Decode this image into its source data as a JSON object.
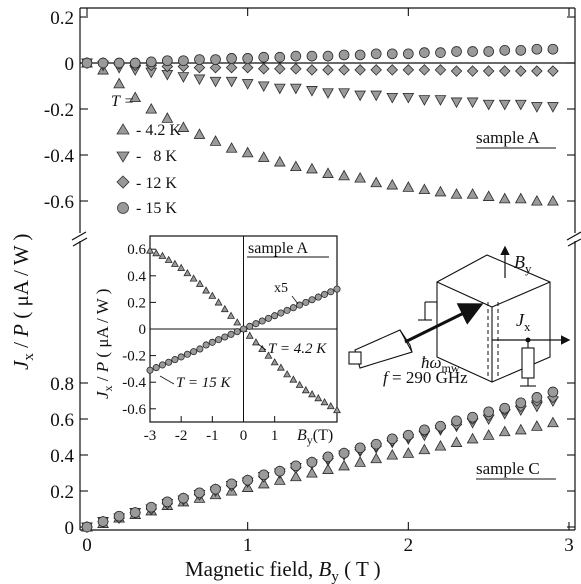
{
  "chart_data": [
    {
      "panel": "upper",
      "type": "scatter",
      "label": "sample A",
      "xlim": [
        0,
        3
      ],
      "ylim": [
        -0.7,
        0.2
      ],
      "y_ticks": [
        "0.2",
        "0",
        "-0.2",
        "-0.4",
        "-0.6"
      ],
      "y_tick_values": [
        0.2,
        0,
        -0.2,
        -0.4,
        -0.6
      ],
      "legend_title": "T =",
      "legend_placement": "left",
      "series": [
        {
          "name": "- 4.2 K",
          "marker": "triangle-up",
          "x": [
            0,
            0.1,
            0.2,
            0.3,
            0.4,
            0.5,
            0.6,
            0.7,
            0.8,
            0.9,
            1.0,
            1.1,
            1.2,
            1.3,
            1.4,
            1.5,
            1.6,
            1.7,
            1.8,
            1.9,
            2.0,
            2.1,
            2.2,
            2.3,
            2.4,
            2.5,
            2.6,
            2.7,
            2.8,
            2.9
          ],
          "y": [
            0,
            -0.03,
            -0.09,
            -0.15,
            -0.2,
            -0.24,
            -0.28,
            -0.31,
            -0.34,
            -0.37,
            -0.39,
            -0.41,
            -0.43,
            -0.45,
            -0.46,
            -0.48,
            -0.49,
            -0.5,
            -0.52,
            -0.53,
            -0.54,
            -0.55,
            -0.56,
            -0.57,
            -0.57,
            -0.58,
            -0.59,
            -0.59,
            -0.6,
            -0.6
          ]
        },
        {
          "name": "-   8 K",
          "marker": "triangle-down",
          "x": [
            0,
            0.1,
            0.2,
            0.3,
            0.4,
            0.5,
            0.6,
            0.7,
            0.8,
            0.9,
            1.0,
            1.1,
            1.2,
            1.3,
            1.4,
            1.5,
            1.6,
            1.7,
            1.8,
            1.9,
            2.0,
            2.1,
            2.2,
            2.3,
            2.4,
            2.5,
            2.6,
            2.7,
            2.8,
            2.9
          ],
          "y": [
            0,
            -0.01,
            -0.02,
            -0.03,
            -0.04,
            -0.05,
            -0.06,
            -0.07,
            -0.08,
            -0.08,
            -0.09,
            -0.1,
            -0.11,
            -0.11,
            -0.12,
            -0.13,
            -0.13,
            -0.14,
            -0.14,
            -0.15,
            -0.15,
            -0.16,
            -0.16,
            -0.17,
            -0.17,
            -0.18,
            -0.18,
            -0.18,
            -0.19,
            -0.19
          ]
        },
        {
          "name": "- 12 K",
          "marker": "diamond",
          "x": [
            0,
            0.1,
            0.2,
            0.3,
            0.4,
            0.5,
            0.6,
            0.7,
            0.8,
            0.9,
            1.0,
            1.1,
            1.2,
            1.3,
            1.4,
            1.5,
            1.6,
            1.7,
            1.8,
            1.9,
            2.0,
            2.1,
            2.2,
            2.3,
            2.4,
            2.5,
            2.6,
            2.7,
            2.8,
            2.9
          ],
          "y": [
            0,
            0,
            -0.005,
            -0.01,
            -0.01,
            -0.015,
            -0.015,
            -0.02,
            -0.02,
            -0.02,
            -0.02,
            -0.025,
            -0.025,
            -0.025,
            -0.03,
            -0.03,
            -0.03,
            -0.03,
            -0.03,
            -0.03,
            -0.03,
            -0.03,
            -0.03,
            -0.035,
            -0.035,
            -0.035,
            -0.035,
            -0.035,
            -0.035,
            -0.035
          ]
        },
        {
          "name": "- 15 K",
          "marker": "circle",
          "x": [
            0,
            0.1,
            0.2,
            0.3,
            0.4,
            0.5,
            0.6,
            0.7,
            0.8,
            0.9,
            1.0,
            1.1,
            1.2,
            1.3,
            1.4,
            1.5,
            1.6,
            1.7,
            1.8,
            1.9,
            2.0,
            2.1,
            2.2,
            2.3,
            2.4,
            2.5,
            2.6,
            2.7,
            2.8,
            2.9
          ],
          "y": [
            0,
            0,
            0,
            0,
            0.005,
            0.01,
            0.01,
            0.015,
            0.015,
            0.02,
            0.02,
            0.025,
            0.025,
            0.03,
            0.03,
            0.03,
            0.035,
            0.035,
            0.04,
            0.04,
            0.04,
            0.045,
            0.045,
            0.05,
            0.05,
            0.05,
            0.055,
            0.055,
            0.06,
            0.06
          ]
        }
      ]
    },
    {
      "panel": "lower",
      "type": "scatter",
      "label": "sample C",
      "xlim": [
        0,
        3
      ],
      "ylim": [
        0,
        0.9
      ],
      "y_ticks": [
        "0.8",
        "0.6",
        "0.4",
        "0.2",
        "0"
      ],
      "y_tick_values": [
        0.8,
        0.6,
        0.4,
        0.2,
        0
      ],
      "series": [
        {
          "marker": "triangle-up",
          "x": [
            0,
            0.1,
            0.2,
            0.3,
            0.4,
            0.5,
            0.6,
            0.7,
            0.8,
            0.9,
            1.0,
            1.1,
            1.2,
            1.3,
            1.4,
            1.5,
            1.6,
            1.7,
            1.8,
            1.9,
            2.0,
            2.1,
            2.2,
            2.3,
            2.4,
            2.5,
            2.6,
            2.7,
            2.8,
            2.9
          ],
          "y": [
            0,
            0.02,
            0.05,
            0.07,
            0.09,
            0.12,
            0.14,
            0.16,
            0.18,
            0.2,
            0.22,
            0.24,
            0.26,
            0.28,
            0.3,
            0.32,
            0.34,
            0.36,
            0.38,
            0.4,
            0.41,
            0.43,
            0.45,
            0.47,
            0.49,
            0.51,
            0.53,
            0.54,
            0.56,
            0.58
          ]
        },
        {
          "marker": "triangle-down",
          "x": [
            0,
            0.1,
            0.2,
            0.3,
            0.4,
            0.5,
            0.6,
            0.7,
            0.8,
            0.9,
            1.0,
            1.1,
            1.2,
            1.3,
            1.4,
            1.5,
            1.6,
            1.7,
            1.8,
            1.9,
            2.0,
            2.1,
            2.2,
            2.3,
            2.4,
            2.5,
            2.6,
            2.7,
            2.8,
            2.9
          ],
          "y": [
            0,
            0.03,
            0.05,
            0.08,
            0.1,
            0.13,
            0.15,
            0.18,
            0.2,
            0.23,
            0.25,
            0.28,
            0.3,
            0.33,
            0.35,
            0.37,
            0.4,
            0.42,
            0.44,
            0.47,
            0.49,
            0.51,
            0.54,
            0.56,
            0.58,
            0.6,
            0.63,
            0.65,
            0.67,
            0.7
          ]
        },
        {
          "marker": "diamond",
          "x": [
            0,
            0.1,
            0.2,
            0.3,
            0.4,
            0.5,
            0.6,
            0.7,
            0.8,
            0.9,
            1.0,
            1.1,
            1.2,
            1.3,
            1.4,
            1.5,
            1.6,
            1.7,
            1.8,
            1.9,
            2.0,
            2.1,
            2.2,
            2.3,
            2.4,
            2.5,
            2.6,
            2.7,
            2.8,
            2.9
          ],
          "y": [
            0,
            0.03,
            0.05,
            0.08,
            0.1,
            0.13,
            0.16,
            0.18,
            0.21,
            0.23,
            0.26,
            0.28,
            0.31,
            0.33,
            0.36,
            0.38,
            0.41,
            0.43,
            0.45,
            0.48,
            0.5,
            0.53,
            0.55,
            0.57,
            0.6,
            0.62,
            0.65,
            0.67,
            0.7,
            0.72
          ]
        },
        {
          "marker": "circle",
          "x": [
            0,
            0.1,
            0.2,
            0.3,
            0.4,
            0.5,
            0.6,
            0.7,
            0.8,
            0.9,
            1.0,
            1.1,
            1.2,
            1.3,
            1.4,
            1.5,
            1.6,
            1.7,
            1.8,
            1.9,
            2.0,
            2.1,
            2.2,
            2.3,
            2.4,
            2.5,
            2.6,
            2.7,
            2.8,
            2.9
          ],
          "y": [
            0,
            0.03,
            0.06,
            0.08,
            0.11,
            0.14,
            0.16,
            0.19,
            0.21,
            0.24,
            0.26,
            0.29,
            0.31,
            0.34,
            0.36,
            0.39,
            0.41,
            0.44,
            0.46,
            0.49,
            0.51,
            0.54,
            0.56,
            0.59,
            0.61,
            0.64,
            0.66,
            0.69,
            0.72,
            0.75
          ]
        }
      ]
    },
    {
      "panel": "inset",
      "type": "scatter",
      "label": "sample A",
      "xlim": [
        -3,
        3
      ],
      "ylim": [
        -0.7,
        0.7
      ],
      "x_ticks": [
        "-3",
        "-2",
        "-1",
        "0",
        "1"
      ],
      "x_tick_values": [
        -3,
        -2,
        -1,
        0,
        1
      ],
      "y_ticks": [
        "0.6",
        "0.4",
        "0.2",
        "0",
        "-0.2",
        "-0.4",
        "-0.6"
      ],
      "y_tick_values": [
        0.6,
        0.4,
        0.2,
        0,
        -0.2,
        -0.4,
        -0.6
      ],
      "series": [
        {
          "marker": "triangle-up",
          "label": "T = 4.2 K",
          "x": [
            -3.0,
            -2.8,
            -2.6,
            -2.4,
            -2.2,
            -2.0,
            -1.8,
            -1.6,
            -1.4,
            -1.2,
            -1.0,
            -0.8,
            -0.6,
            -0.4,
            -0.2,
            0.0,
            0.2,
            0.4,
            0.6,
            0.8,
            1.0,
            1.2,
            1.4,
            1.6,
            1.8,
            2.0,
            2.2,
            2.4,
            2.6,
            2.8,
            3.0
          ],
          "y": [
            0.59,
            0.57,
            0.55,
            0.52,
            0.49,
            0.46,
            0.42,
            0.38,
            0.34,
            0.29,
            0.25,
            0.2,
            0.15,
            0.1,
            0.05,
            0.0,
            -0.05,
            -0.1,
            -0.15,
            -0.2,
            -0.25,
            -0.29,
            -0.34,
            -0.38,
            -0.42,
            -0.46,
            -0.49,
            -0.52,
            -0.55,
            -0.58,
            -0.61
          ]
        },
        {
          "marker": "circle",
          "label": "T = 15 K",
          "annotation": "x5",
          "x": [
            -3.0,
            -2.8,
            -2.6,
            -2.4,
            -2.2,
            -2.0,
            -1.8,
            -1.6,
            -1.4,
            -1.2,
            -1.0,
            -0.8,
            -0.6,
            -0.4,
            -0.2,
            0.0,
            0.2,
            0.4,
            0.6,
            0.8,
            1.0,
            1.2,
            1.4,
            1.6,
            1.8,
            2.0,
            2.2,
            2.4,
            2.6,
            2.8,
            3.0
          ],
          "y": [
            -0.31,
            -0.29,
            -0.27,
            -0.25,
            -0.23,
            -0.21,
            -0.19,
            -0.17,
            -0.15,
            -0.12,
            -0.1,
            -0.08,
            -0.06,
            -0.04,
            -0.02,
            0.0,
            0.02,
            0.04,
            0.06,
            0.08,
            0.1,
            0.12,
            0.14,
            0.16,
            0.18,
            0.2,
            0.22,
            0.24,
            0.26,
            0.28,
            0.3
          ]
        }
      ]
    }
  ],
  "x_axis": {
    "ticks": [
      "0",
      "1",
      "2",
      "3"
    ],
    "tick_values": [
      0,
      1,
      2,
      3
    ],
    "label_text": "Magnetic field, ",
    "label_var": "B",
    "label_sub": "y",
    "label_unit": " ( T )"
  },
  "y_axis": {
    "label_var": "J",
    "label_sub": "x",
    "label_rest": " / ",
    "label_var2": "P",
    "label_unit": " ( μA / W )"
  },
  "legend": {
    "title": "T =",
    "entries": [
      "- 4.2 K",
      "-   8 K",
      "- 12 K",
      "- 15 K"
    ]
  },
  "inset": {
    "ylabel_var": "J",
    "ylabel_sub": "x",
    "ylabel_rest": " / ",
    "ylabel_var2": "P",
    "ylabel_unit": " ( μA / W )",
    "xlabel_var": "B",
    "xlabel_sub": "y",
    "xlabel_unit": "(T)",
    "annot_4k": "T = 4.2 K",
    "annot_15k": "T = 15 K",
    "annot_x5": "x5"
  },
  "schematic": {
    "field_var": "B",
    "field_sub": "y",
    "current_var": "J",
    "current_sub": "x",
    "photon": "ħω",
    "photon_sub": "mw",
    "frequency": "f = 290 GHz"
  }
}
